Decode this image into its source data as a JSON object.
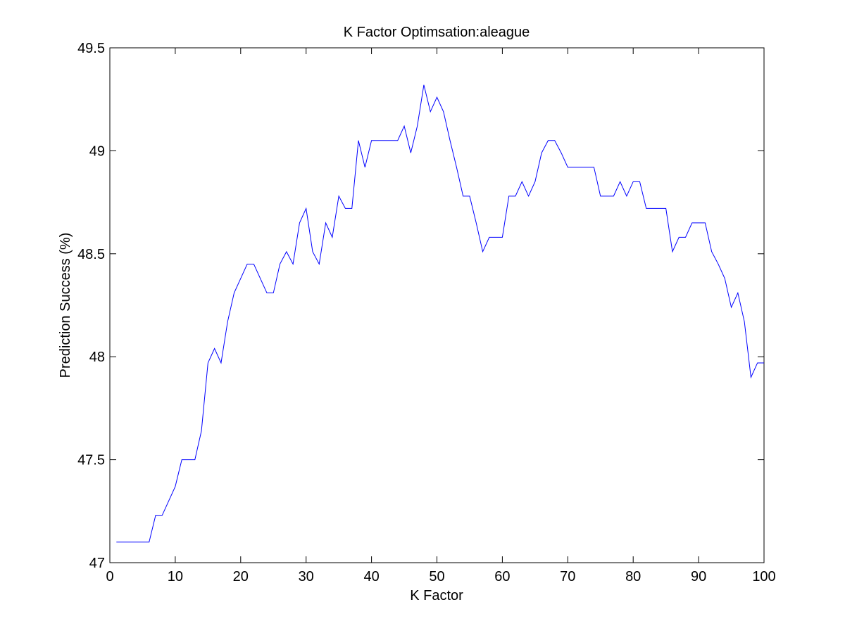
{
  "chart_data": {
    "type": "line",
    "title": "K Factor Optimsation:aleague",
    "xlabel": "K Factor",
    "ylabel": "Prediction Success (%)",
    "xlim": [
      0,
      100
    ],
    "ylim": [
      47,
      49.5
    ],
    "xticks": [
      0,
      10,
      20,
      30,
      40,
      50,
      60,
      70,
      80,
      90,
      100
    ],
    "yticks": [
      47,
      47.5,
      48,
      48.5,
      49,
      49.5
    ],
    "xtick_labels": [
      "0",
      "10",
      "20",
      "30",
      "40",
      "50",
      "60",
      "70",
      "80",
      "90",
      "100"
    ],
    "ytick_labels": [
      "47",
      "47.5",
      "48",
      "48.5",
      "49",
      "49.5"
    ],
    "grid": false,
    "series": [
      {
        "color": "#0000ff",
        "x": [
          1,
          2,
          3,
          4,
          5,
          6,
          7,
          8,
          9,
          10,
          11,
          12,
          13,
          14,
          15,
          16,
          17,
          18,
          19,
          20,
          21,
          22,
          23,
          24,
          25,
          26,
          27,
          28,
          29,
          30,
          31,
          32,
          33,
          34,
          35,
          36,
          37,
          38,
          39,
          40,
          41,
          42,
          43,
          44,
          45,
          46,
          47,
          48,
          49,
          50,
          51,
          52,
          53,
          54,
          55,
          56,
          57,
          58,
          59,
          60,
          61,
          62,
          63,
          64,
          65,
          66,
          67,
          68,
          69,
          70,
          71,
          72,
          73,
          74,
          75,
          76,
          77,
          78,
          79,
          80,
          81,
          82,
          83,
          84,
          85,
          86,
          87,
          88,
          89,
          90,
          91,
          92,
          93,
          94,
          95,
          96,
          97,
          98,
          99,
          100
        ],
        "y": [
          47.1,
          47.1,
          47.1,
          47.1,
          47.1,
          47.1,
          47.23,
          47.23,
          47.3,
          47.37,
          47.5,
          47.5,
          47.5,
          47.64,
          47.97,
          48.04,
          47.97,
          48.17,
          48.31,
          48.38,
          48.45,
          48.45,
          48.38,
          48.31,
          48.31,
          48.45,
          48.51,
          48.45,
          48.65,
          48.72,
          48.51,
          48.45,
          48.65,
          48.58,
          48.78,
          48.72,
          48.72,
          49.05,
          48.92,
          49.05,
          49.05,
          49.05,
          49.05,
          49.05,
          49.12,
          48.99,
          49.12,
          49.32,
          49.19,
          49.26,
          49.19,
          49.05,
          48.92,
          48.78,
          48.78,
          48.65,
          48.51,
          48.58,
          48.58,
          48.58,
          48.78,
          48.78,
          48.85,
          48.78,
          48.85,
          48.99,
          49.05,
          49.05,
          48.99,
          48.92,
          48.92,
          48.92,
          48.92,
          48.92,
          48.78,
          48.78,
          48.78,
          48.85,
          48.78,
          48.85,
          48.85,
          48.72,
          48.72,
          48.72,
          48.72,
          48.51,
          48.58,
          48.58,
          48.65,
          48.65,
          48.65,
          48.51,
          48.45,
          48.38,
          48.24,
          48.31,
          48.17,
          47.9,
          47.97,
          47.97
        ]
      }
    ]
  }
}
